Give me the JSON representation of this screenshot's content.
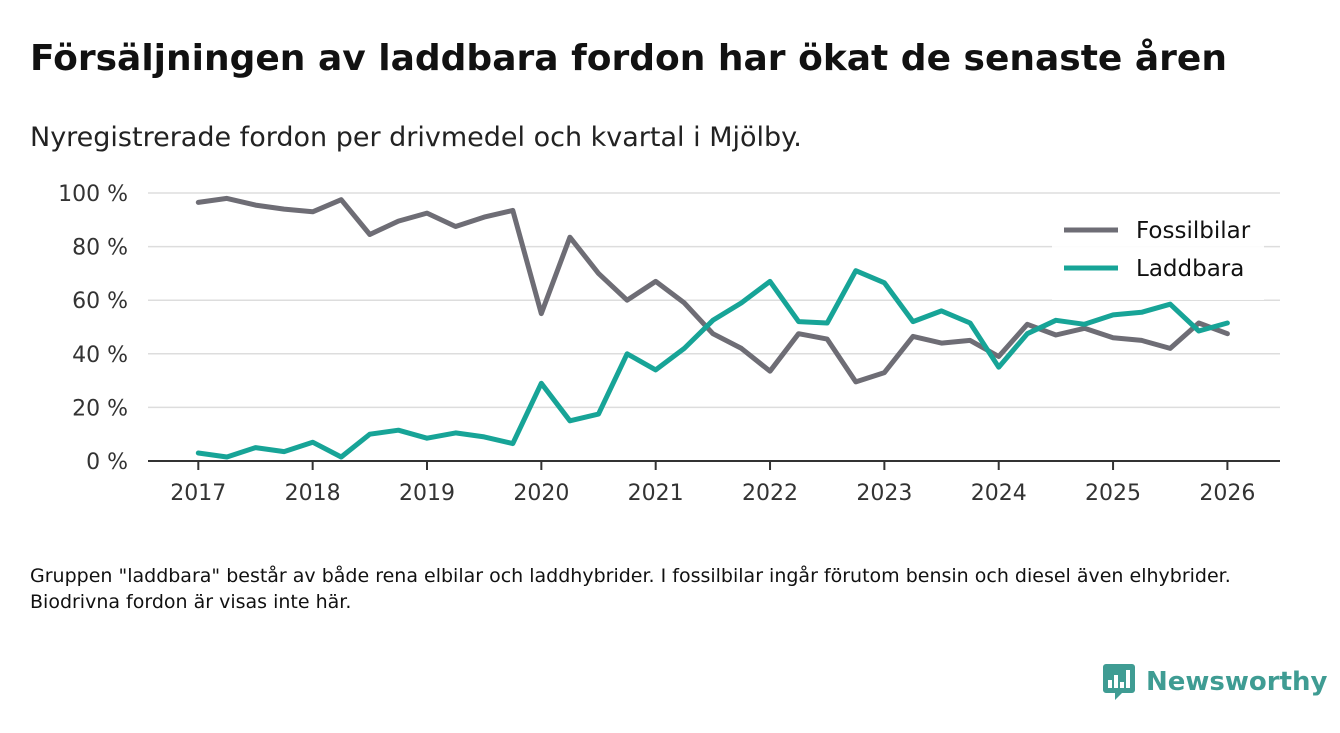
{
  "title": "Försäljningen av laddbara fordon har ökat de senaste åren",
  "subtitle": "Nyregistrerade fordon per drivmedel och kvartal i Mjölby.",
  "footnote": "Gruppen \"laddbara\" består av både rena elbilar och laddhybrider. I fossilbilar ingår förutom bensin och diesel även elhybrider. Biodrivna fordon är visas inte här.",
  "brand": {
    "name": "Newsworthy",
    "icon": "newsworthy-logo-icon",
    "color": "#3f9c93"
  },
  "chart_data": {
    "type": "line",
    "title": "Försäljningen av laddbara fordon har ökat de senaste åren",
    "subtitle": "Nyregistrerade fordon per drivmedel och kvartal i Mjölby.",
    "xlabel": "",
    "ylabel": "",
    "xlim": [
      2016.56,
      2026.46
    ],
    "ylim": [
      0,
      100
    ],
    "yticks": [
      0,
      20,
      40,
      60,
      80,
      100
    ],
    "ytick_labels": [
      "0 %",
      "20 %",
      "40 %",
      "60 %",
      "80 %",
      "100 %"
    ],
    "xticks": [
      2017,
      2018,
      2019,
      2020,
      2021,
      2022,
      2023,
      2024,
      2025,
      2026
    ],
    "xtick_labels": [
      "2017",
      "2018",
      "2019",
      "2020",
      "2021",
      "2022",
      "2023",
      "2024",
      "2025",
      "2026"
    ],
    "grid": true,
    "legend_position": "top-right",
    "x": [
      2017.0,
      2017.25,
      2017.5,
      2017.75,
      2018.0,
      2018.25,
      2018.5,
      2018.75,
      2019.0,
      2019.25,
      2019.5,
      2019.75,
      2020.0,
      2020.25,
      2020.5,
      2020.75,
      2021.0,
      2021.25,
      2021.5,
      2021.75,
      2022.0,
      2022.25,
      2022.5,
      2022.75,
      2023.0,
      2023.25,
      2023.5,
      2023.75,
      2024.0,
      2024.25,
      2024.5,
      2024.75,
      2025.0,
      2025.25,
      2025.5,
      2025.75,
      2026.0
    ],
    "series": [
      {
        "name": "Fossilbilar",
        "color": "#6e6d75",
        "values": [
          96.5,
          98,
          95.5,
          94,
          93,
          97.5,
          84.5,
          89.5,
          92.5,
          87.5,
          91,
          93.5,
          55,
          83.5,
          70,
          60,
          67,
          59,
          47.5,
          42,
          33.5,
          47.5,
          45.5,
          29.5,
          33,
          46.5,
          44,
          45,
          39,
          51,
          47,
          49.5,
          46,
          45,
          42,
          51.5,
          47.5
        ]
      },
      {
        "name": "Laddbara",
        "color": "#17a497",
        "values": [
          3,
          1.5,
          5,
          3.5,
          7,
          1.5,
          10,
          11.5,
          8.5,
          10.5,
          9,
          6.5,
          29,
          15,
          17.5,
          40,
          34,
          42,
          52.5,
          59,
          67,
          52,
          51.5,
          71,
          66.5,
          52,
          56,
          51.5,
          35,
          47.5,
          52.5,
          51,
          54.5,
          55.5,
          58.5,
          48.5,
          51.5
        ]
      }
    ]
  }
}
